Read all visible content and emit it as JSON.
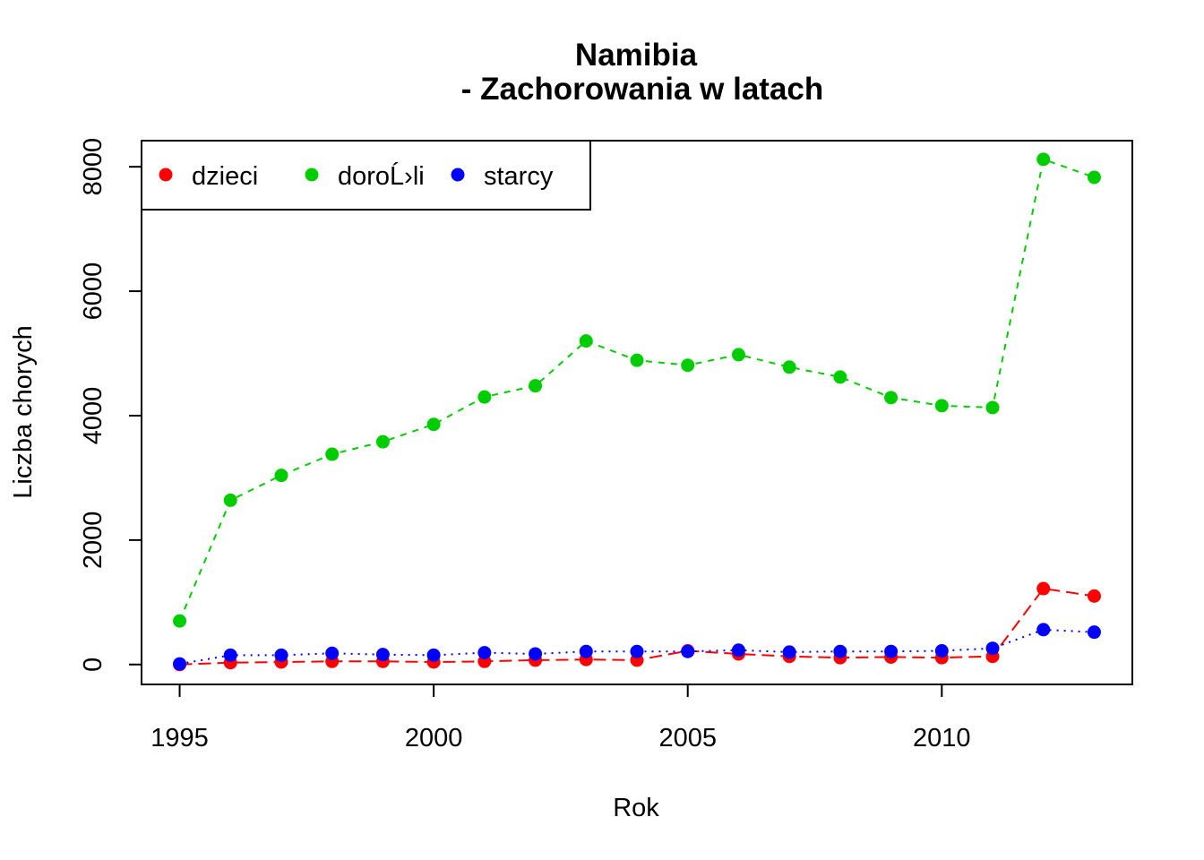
{
  "chart_data": {
    "type": "line",
    "title_line1": "Namibia",
    "title_line2": "- Zachorowania w latach",
    "xlabel": "Rok",
    "ylabel": "Liczba chorych",
    "xlim": [
      1994.25,
      2013.75
    ],
    "ylim": [
      -320,
      8420
    ],
    "x_ticks": [
      1995,
      2000,
      2005,
      2010
    ],
    "y_ticks": [
      0,
      2000,
      4000,
      6000,
      8000
    ],
    "legend_position": "top-left",
    "x": [
      1995,
      1996,
      1997,
      1998,
      1999,
      2000,
      2001,
      2002,
      2003,
      2004,
      2005,
      2006,
      2007,
      2008,
      2009,
      2010,
      2011,
      2012,
      2013
    ],
    "series": [
      {
        "name": "dzieci",
        "color": "#FF0000",
        "line_style": "dashed",
        "values": [
          0,
          30,
          40,
          50,
          50,
          40,
          50,
          70,
          80,
          70,
          220,
          170,
          130,
          110,
          120,
          110,
          130,
          1220,
          1100
        ]
      },
      {
        "name": "doroĹ›li",
        "color": "#00CD00",
        "line_style": "short-dashed",
        "values": [
          700,
          2640,
          3040,
          3380,
          3580,
          3860,
          4300,
          4480,
          5200,
          4890,
          4810,
          4980,
          4780,
          4620,
          4290,
          4160,
          4130,
          8120,
          7830
        ]
      },
      {
        "name": "starcy",
        "color": "#0000FF",
        "line_style": "dotted",
        "values": [
          10,
          150,
          150,
          180,
          160,
          150,
          190,
          170,
          210,
          210,
          210,
          230,
          200,
          210,
          210,
          220,
          260,
          560,
          520
        ]
      }
    ]
  }
}
